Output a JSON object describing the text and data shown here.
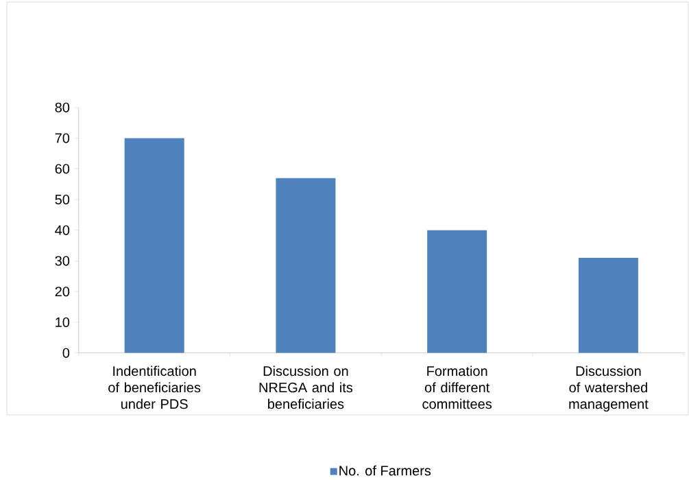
{
  "chart_data": {
    "type": "bar",
    "categories": [
      "Indentification of beneficiaries under PDS",
      "Discussion on NREGA and its beneficiaries",
      "Formation of different committees",
      "Discussion of watershed management"
    ],
    "series": [
      {
        "name": "No. of Farmers",
        "color": "#4f81bd",
        "values": [
          70,
          57,
          40,
          31
        ]
      }
    ],
    "ylim": [
      0,
      80
    ],
    "yticks": [
      0,
      10,
      20,
      30,
      40,
      50,
      60,
      70,
      80
    ],
    "legend": "bottom"
  }
}
